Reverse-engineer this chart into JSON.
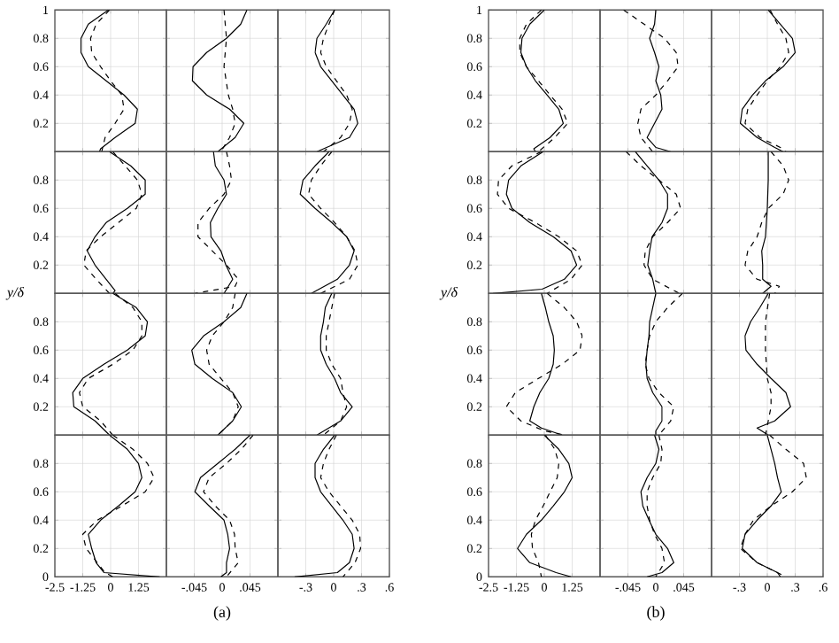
{
  "chart_data": [
    {
      "type": "line",
      "xlim": [
        -2.5,
        2.5
      ],
      "ylim": [
        0,
        1
      ],
      "xticks": [
        -1.25,
        0,
        1.25
      ],
      "yticks": [
        0.2,
        0.4,
        0.6,
        0.8,
        1
      ],
      "grid": true,
      "tick_labels": "y",
      "series": [
        {
          "color": "#000000",
          "line_style": "solid",
          "x": [
            -0.1,
            -1.0,
            -1.33,
            -1.33,
            -1.0,
            -0.2,
            0.6,
            1.2,
            1.1,
            0.2,
            -0.45,
            -0.5
          ],
          "values": [
            1,
            0.9,
            0.8,
            0.7,
            0.6,
            0.5,
            0.4,
            0.3,
            0.2,
            0.1,
            0.02,
            0
          ]
        },
        {
          "color": "#000000",
          "line_style": "dashed",
          "x": [
            -0.05,
            -0.65,
            -0.9,
            -0.85,
            -0.45,
            0,
            0.5,
            0.6,
            0.2,
            -0.25,
            -0.4
          ],
          "values": [
            1,
            0.9,
            0.8,
            0.7,
            0.6,
            0.5,
            0.4,
            0.3,
            0.2,
            0.1,
            0
          ]
        }
      ]
    },
    {
      "type": "line",
      "xlim": [
        -0.09,
        0.09
      ],
      "ylim": [
        0,
        1
      ],
      "xticks": [
        {
          "value": -0.045,
          "label": null
        },
        0,
        {
          "value": 0.045,
          "label": null
        }
      ],
      "yticks": [
        0.2,
        0.4,
        0.6,
        0.8
      ],
      "grid": true,
      "tick_labels": false,
      "series": [
        {
          "color": "#000000",
          "line_style": "solid",
          "x": [
            0.04,
            0.03,
            0.007,
            -0.025,
            -0.047,
            -0.048,
            -0.025,
            0.012,
            0.035,
            0.021,
            -0.007
          ],
          "values": [
            1,
            0.9,
            0.8,
            0.7,
            0.6,
            0.5,
            0.4,
            0.3,
            0.2,
            0.1,
            0
          ]
        },
        {
          "color": "#000000",
          "line_style": "dashed",
          "x": [
            0.003,
            0.007,
            0.003,
            0.01,
            0.017,
            0.021,
            0.012,
            -0.002
          ],
          "values": [
            1,
            0.8,
            0.6,
            0.4,
            0.3,
            0.2,
            0.1,
            0
          ]
        }
      ]
    },
    {
      "type": "line",
      "xlim": [
        -0.6,
        0.6
      ],
      "ylim": [
        0,
        1
      ],
      "xticks": [
        {
          "value": -0.3,
          "label": null
        },
        0,
        {
          "value": 0.3,
          "label": null
        }
      ],
      "yticks": [
        0.2,
        0.4,
        0.6,
        0.8
      ],
      "grid": true,
      "tick_labels": false,
      "series": [
        {
          "color": "#000000",
          "line_style": "solid",
          "x": [
            0.01,
            -0.08,
            -0.18,
            -0.2,
            -0.14,
            -0.02,
            0.1,
            0.22,
            0.26,
            0.17,
            -0.18
          ],
          "values": [
            1,
            0.9,
            0.8,
            0.7,
            0.6,
            0.5,
            0.4,
            0.3,
            0.2,
            0.1,
            0
          ]
        },
        {
          "color": "#000000",
          "line_style": "dashed",
          "x": [
            0.01,
            -0.05,
            -0.11,
            -0.14,
            -0.08,
            0.03,
            0.14,
            0.2,
            0.17,
            0.075,
            -0.11
          ],
          "values": [
            1,
            0.9,
            0.8,
            0.7,
            0.6,
            0.5,
            0.4,
            0.3,
            0.2,
            0.1,
            0
          ]
        }
      ]
    },
    {
      "type": "line",
      "xlim": [
        -2.5,
        2.5
      ],
      "ylim": [
        0,
        1
      ],
      "xticks": [
        -1.25,
        0,
        1.25
      ],
      "yticks": [
        0.2,
        0.4,
        0.6,
        0.8
      ],
      "grid": true,
      "tick_labels": "y",
      "ylabel": "y/δ",
      "series": [
        {
          "color": "#000000",
          "line_style": "solid",
          "x": [
            -0.05,
            0.9,
            1.55,
            1.55,
            0.75,
            -0.2,
            -0.7,
            -1.05,
            -0.7,
            -0.2,
            0.2,
            0.1
          ],
          "values": [
            1,
            0.9,
            0.8,
            0.7,
            0.6,
            0.5,
            0.4,
            0.3,
            0.2,
            0.1,
            0.02,
            0
          ]
        },
        {
          "color": "#000000",
          "line_style": "dashed",
          "x": [
            0.1,
            0.65,
            1.2,
            1.4,
            1.15,
            0.35,
            -0.45,
            -1.1,
            -1.2,
            -0.65,
            -0.05
          ],
          "values": [
            1,
            0.9,
            0.8,
            0.7,
            0.6,
            0.5,
            0.4,
            0.3,
            0.2,
            0.1,
            0
          ]
        }
      ]
    },
    {
      "type": "line",
      "xlim": [
        -0.09,
        0.09
      ],
      "ylim": [
        0,
        1
      ],
      "xticks": [
        {
          "value": -0.045,
          "label": null
        },
        0,
        {
          "value": 0.045,
          "label": null
        }
      ],
      "yticks": [
        0.2,
        0.4,
        0.6,
        0.8
      ],
      "grid": true,
      "tick_labels": false,
      "series": [
        {
          "color": "#000000",
          "line_style": "solid",
          "x": [
            -0.014,
            -0.011,
            0.003,
            0.007,
            -0.007,
            -0.019,
            -0.018,
            -0.002,
            0.006,
            0.017,
            0.003
          ],
          "values": [
            1,
            0.9,
            0.8,
            0.7,
            0.6,
            0.5,
            0.4,
            0.3,
            0.2,
            0.1,
            0
          ]
        },
        {
          "color": "#000000",
          "line_style": "dashed",
          "x": [
            0.007,
            0.012,
            0.015,
            0.003,
            -0.021,
            -0.039,
            -0.039,
            -0.016,
            0.007,
            0.026,
            0.021,
            -0.044
          ],
          "values": [
            1,
            0.9,
            0.8,
            0.7,
            0.6,
            0.5,
            0.4,
            0.3,
            0.2,
            0.1,
            0.05,
            0
          ]
        }
      ]
    },
    {
      "type": "line",
      "xlim": [
        -0.6,
        0.6
      ],
      "ylim": [
        0,
        1
      ],
      "xticks": [
        {
          "value": -0.3,
          "label": null
        },
        0,
        {
          "value": 0.3,
          "label": null
        }
      ],
      "yticks": [
        0.2,
        0.4,
        0.6,
        0.8
      ],
      "grid": true,
      "tick_labels": false,
      "series": [
        {
          "color": "#000000",
          "line_style": "solid",
          "x": [
            -0.05,
            -0.2,
            -0.33,
            -0.36,
            -0.2,
            -0.02,
            0.14,
            0.22,
            0.17,
            0.04,
            -0.24
          ],
          "values": [
            1,
            0.9,
            0.8,
            0.7,
            0.6,
            0.5,
            0.4,
            0.3,
            0.2,
            0.1,
            0
          ]
        },
        {
          "color": "#000000",
          "line_style": "dashed",
          "x": [
            -0.02,
            -0.14,
            -0.24,
            -0.27,
            -0.14,
            0.01,
            0.14,
            0.23,
            0.26,
            0.17,
            -0.14
          ],
          "values": [
            1,
            0.9,
            0.8,
            0.7,
            0.6,
            0.5,
            0.4,
            0.3,
            0.2,
            0.1,
            0
          ]
        }
      ]
    },
    {
      "type": "line",
      "xlim": [
        -2.5,
        2.5
      ],
      "ylim": [
        0,
        1
      ],
      "xticks": [
        -1.25,
        0,
        1.25
      ],
      "yticks": [
        0.2,
        0.4,
        0.6,
        0.8
      ],
      "grid": true,
      "tick_labels": "y",
      "series": [
        {
          "color": "#000000",
          "line_style": "solid",
          "x": [
            0.1,
            1.15,
            1.65,
            1.55,
            0.75,
            -0.3,
            -1.25,
            -1.7,
            -1.65,
            -0.7,
            -0.05
          ],
          "values": [
            1,
            0.9,
            0.8,
            0.7,
            0.6,
            0.5,
            0.4,
            0.3,
            0.2,
            0.1,
            0
          ]
        },
        {
          "color": "#000000",
          "line_style": "dashed",
          "x": [
            0.2,
            1.0,
            1.4,
            1.4,
            1.0,
            0.1,
            -1.0,
            -1.4,
            -1.25,
            -0.45,
            0.1
          ],
          "values": [
            1,
            0.9,
            0.8,
            0.7,
            0.6,
            0.5,
            0.4,
            0.3,
            0.2,
            0.1,
            0
          ]
        }
      ]
    },
    {
      "type": "line",
      "xlim": [
        -0.09,
        0.09
      ],
      "ylim": [
        0,
        1
      ],
      "xticks": [
        {
          "value": -0.045,
          "label": null
        },
        0,
        {
          "value": 0.045,
          "label": null
        }
      ],
      "yticks": [
        0.2,
        0.4,
        0.6,
        0.8
      ],
      "grid": true,
      "tick_labels": false,
      "series": [
        {
          "color": "#000000",
          "line_style": "solid",
          "x": [
            0.04,
            0.03,
            0.003,
            -0.03,
            -0.049,
            -0.044,
            -0.016,
            0.017,
            0.031,
            0.017,
            -0.007
          ],
          "values": [
            1,
            0.9,
            0.8,
            0.7,
            0.6,
            0.5,
            0.4,
            0.3,
            0.2,
            0.1,
            0
          ]
        },
        {
          "color": "#000000",
          "line_style": "dashed",
          "x": [
            0.021,
            0.017,
            0.003,
            -0.016,
            -0.025,
            -0.021,
            -0.002,
            0.017,
            0.026,
            0.017,
            -0.007
          ],
          "values": [
            1,
            0.9,
            0.8,
            0.7,
            0.6,
            0.5,
            0.4,
            0.3,
            0.2,
            0.1,
            0
          ]
        }
      ]
    },
    {
      "type": "line",
      "xlim": [
        -0.6,
        0.6
      ],
      "ylim": [
        0,
        1
      ],
      "xticks": [
        {
          "value": -0.3,
          "label": null
        },
        0,
        {
          "value": 0.3,
          "label": null
        }
      ],
      "yticks": [
        0.2,
        0.4,
        0.6,
        0.8
      ],
      "grid": true,
      "tick_labels": false,
      "series": [
        {
          "color": "#000000",
          "line_style": "solid",
          "x": [
            -0.02,
            -0.09,
            -0.11,
            -0.14,
            -0.14,
            -0.08,
            0.01,
            0.075,
            0.2,
            0.075,
            -0.18
          ],
          "values": [
            1,
            0.9,
            0.8,
            0.7,
            0.6,
            0.5,
            0.4,
            0.3,
            0.2,
            0.1,
            0
          ]
        },
        {
          "color": "#000000",
          "line_style": "dashed",
          "x": [
            0.01,
            -0.02,
            -0.05,
            -0.08,
            -0.08,
            -0.02,
            0.075,
            0.1,
            0.14,
            0.075,
            -0.11
          ],
          "values": [
            1,
            0.9,
            0.8,
            0.7,
            0.6,
            0.5,
            0.4,
            0.3,
            0.2,
            0.1,
            0
          ]
        }
      ]
    },
    {
      "type": "line",
      "xlim": [
        -2.5,
        2.5
      ],
      "ylim": [
        0,
        1
      ],
      "xticks": [
        -2.5,
        -1.25,
        0,
        1.25
      ],
      "yticks": [
        0,
        0.2,
        0.4,
        0.6,
        0.8
      ],
      "grid": true,
      "series": [
        {
          "color": "#000000",
          "line_style": "solid",
          "x": [
            -0.05,
            0.75,
            1.25,
            1.4,
            1.1,
            0.35,
            -0.45,
            -1.0,
            -0.85,
            -0.65,
            -0.3,
            2.2
          ],
          "values": [
            1,
            0.9,
            0.8,
            0.7,
            0.6,
            0.5,
            0.4,
            0.3,
            0.2,
            0.1,
            0.03,
            0
          ]
        },
        {
          "color": "#000000",
          "line_style": "dashed",
          "x": [
            0.1,
            1.0,
            1.65,
            1.95,
            1.55,
            0.5,
            -0.6,
            -1.25,
            -1.1,
            -0.6,
            -0.25,
            0.1
          ],
          "values": [
            1,
            0.9,
            0.8,
            0.7,
            0.6,
            0.5,
            0.4,
            0.3,
            0.2,
            0.1,
            0.03,
            0
          ]
        }
      ]
    },
    {
      "type": "line",
      "xlim": [
        -0.09,
        0.09
      ],
      "ylim": [
        0,
        1
      ],
      "xticks": [
        {
          "value": -0.045,
          "label": "-.045"
        },
        0,
        {
          "value": 0.045,
          "label": ".045"
        }
      ],
      "yticks": [
        0,
        0.2,
        0.4,
        0.6,
        0.8
      ],
      "grid": true,
      "tick_labels": "x",
      "annotations": [
        "(a)"
      ],
      "series": [
        {
          "color": "#000000",
          "line_style": "solid",
          "x": [
            0.045,
            0.021,
            -0.007,
            -0.035,
            -0.044,
            -0.021,
            0.003,
            0.009,
            0.012,
            0.007,
            0.007,
            -0.002
          ],
          "values": [
            1,
            0.9,
            0.8,
            0.7,
            0.6,
            0.5,
            0.4,
            0.3,
            0.2,
            0.1,
            0.03,
            0
          ]
        },
        {
          "color": "#000000",
          "line_style": "dashed",
          "x": [
            0.05,
            0.031,
            0.007,
            -0.021,
            -0.03,
            -0.011,
            0.012,
            0.02,
            0.021,
            0.026,
            0.007
          ],
          "values": [
            1,
            0.9,
            0.8,
            0.7,
            0.6,
            0.5,
            0.4,
            0.3,
            0.2,
            0.1,
            0
          ]
        }
      ]
    },
    {
      "type": "line",
      "xlim": [
        -0.6,
        0.6
      ],
      "ylim": [
        0,
        1
      ],
      "xticks": [
        {
          "value": -0.3,
          "label": "-.3"
        },
        0,
        {
          "value": 0.3,
          "label": ".3"
        },
        {
          "value": 0.6,
          "label": ".6"
        }
      ],
      "yticks": [
        0,
        0.2,
        0.4,
        0.6,
        0.8
      ],
      "grid": true,
      "tick_labels": "x",
      "series": [
        {
          "color": "#000000",
          "line_style": "solid",
          "x": [
            0.01,
            -0.11,
            -0.2,
            -0.2,
            -0.14,
            -0.02,
            0.1,
            0.2,
            0.22,
            0.17,
            0.04,
            -0.42
          ],
          "values": [
            1,
            0.9,
            0.8,
            0.7,
            0.6,
            0.5,
            0.4,
            0.3,
            0.2,
            0.1,
            0.03,
            0
          ]
        },
        {
          "color": "#000000",
          "line_style": "dashed",
          "x": [
            0.03,
            -0.05,
            -0.11,
            -0.14,
            -0.05,
            0.075,
            0.2,
            0.28,
            0.29,
            0.23,
            0.1
          ],
          "values": [
            1,
            0.9,
            0.8,
            0.7,
            0.6,
            0.5,
            0.4,
            0.3,
            0.2,
            0.1,
            0
          ]
        }
      ]
    },
    {
      "type": "line",
      "xlim": [
        -2.5,
        2.5
      ],
      "ylim": [
        0,
        1
      ],
      "xticks": [
        -1.25,
        0,
        1.25
      ],
      "yticks": [
        0.2,
        0.4,
        0.6,
        0.8,
        1
      ],
      "grid": true,
      "tick_labels": "y",
      "series": [
        {
          "color": "#000000",
          "line_style": "solid",
          "x": [
            0,
            -0.65,
            -1.0,
            -1.05,
            -0.8,
            -0.4,
            0.13,
            0.65,
            0.85,
            0.26,
            -0.47,
            -0.4
          ],
          "values": [
            1,
            0.9,
            0.8,
            0.7,
            0.6,
            0.5,
            0.4,
            0.3,
            0.2,
            0.1,
            0.02,
            0
          ]
        },
        {
          "color": "#000000",
          "line_style": "dashed",
          "x": [
            -0.13,
            -0.8,
            -1.1,
            -1.1,
            -0.8,
            -0.26,
            0.26,
            0.8,
            1.05,
            0.47,
            -0.26
          ],
          "values": [
            1,
            0.9,
            0.8,
            0.7,
            0.6,
            0.5,
            0.4,
            0.3,
            0.2,
            0.1,
            0
          ]
        }
      ]
    },
    {
      "type": "line",
      "xlim": [
        -0.09,
        0.09
      ],
      "ylim": [
        0,
        1
      ],
      "xticks": [
        {
          "value": -0.045,
          "label": null
        },
        0,
        {
          "value": 0.045,
          "label": null
        }
      ],
      "yticks": [
        0.2,
        0.4,
        0.6,
        0.8
      ],
      "grid": true,
      "tick_labels": false,
      "series": [
        {
          "color": "#000000",
          "line_style": "solid",
          "x": [
            0,
            -0.002,
            -0.01,
            -0.002,
            0.005,
            0,
            0.008,
            0.01,
            -0.002,
            -0.014,
            0,
            0.024
          ],
          "values": [
            1,
            0.9,
            0.8,
            0.7,
            0.6,
            0.5,
            0.4,
            0.3,
            0.2,
            0.1,
            0.03,
            0
          ]
        },
        {
          "color": "#000000",
          "line_style": "dashed",
          "x": [
            -0.052,
            -0.019,
            0.014,
            0.033,
            0.036,
            0.019,
            0,
            -0.024,
            -0.029,
            -0.024,
            -0.005
          ],
          "values": [
            1,
            0.9,
            0.8,
            0.7,
            0.6,
            0.5,
            0.4,
            0.3,
            0.2,
            0.1,
            0
          ]
        }
      ]
    },
    {
      "type": "line",
      "xlim": [
        -0.6,
        0.6
      ],
      "ylim": [
        0,
        1
      ],
      "xticks": [
        {
          "value": -0.3,
          "label": null
        },
        0,
        {
          "value": 0.3,
          "label": null
        }
      ],
      "yticks": [
        0.2,
        0.4,
        0.6,
        0.8
      ],
      "grid": true,
      "tick_labels": false,
      "series": [
        {
          "color": "#000000",
          "line_style": "solid",
          "x": [
            0.01,
            0.14,
            0.27,
            0.3,
            0.17,
            -0.02,
            -0.16,
            -0.27,
            -0.29,
            -0.11,
            0.08,
            0.17
          ],
          "values": [
            1,
            0.9,
            0.8,
            0.7,
            0.6,
            0.5,
            0.4,
            0.3,
            0.2,
            0.1,
            0.03,
            0
          ]
        },
        {
          "color": "#000000",
          "line_style": "dashed",
          "x": [
            0.03,
            0.11,
            0.2,
            0.23,
            0.14,
            0,
            -0.11,
            -0.21,
            -0.24,
            -0.08,
            0.14,
            0.2
          ],
          "values": [
            1,
            0.9,
            0.8,
            0.7,
            0.6,
            0.5,
            0.4,
            0.3,
            0.2,
            0.1,
            0.03,
            0
          ]
        }
      ]
    },
    {
      "type": "line",
      "xlim": [
        -2.5,
        2.5
      ],
      "ylim": [
        0,
        1
      ],
      "xticks": [
        -1.25,
        0,
        1.25
      ],
      "yticks": [
        0.2,
        0.4,
        0.6,
        0.8
      ],
      "grid": true,
      "tick_labels": "y",
      "ylabel": "y/δ",
      "series": [
        {
          "color": "#000000",
          "line_style": "solid",
          "x": [
            -0.05,
            -1.05,
            -1.6,
            -1.7,
            -1.45,
            -0.65,
            0.4,
            1.2,
            1.45,
            0.9,
            -0.1,
            -2.3
          ],
          "values": [
            1,
            0.9,
            0.8,
            0.7,
            0.6,
            0.5,
            0.4,
            0.3,
            0.2,
            0.1,
            0.03,
            0
          ]
        },
        {
          "color": "#000000",
          "line_style": "dashed",
          "x": [
            -0.13,
            -1.45,
            -2.05,
            -2.1,
            -1.6,
            -0.4,
            0.65,
            1.45,
            1.7,
            1.2,
            0.13
          ],
          "values": [
            1,
            0.9,
            0.8,
            0.7,
            0.6,
            0.5,
            0.4,
            0.3,
            0.2,
            0.1,
            0
          ]
        }
      ]
    },
    {
      "type": "line",
      "xlim": [
        -0.09,
        0.09
      ],
      "ylim": [
        0,
        1
      ],
      "xticks": [
        {
          "value": -0.045,
          "label": null
        },
        0,
        {
          "value": 0.045,
          "label": null
        }
      ],
      "yticks": [
        0.2,
        0.4,
        0.6,
        0.8
      ],
      "grid": true,
      "tick_labels": false,
      "series": [
        {
          "color": "#000000",
          "line_style": "solid",
          "x": [
            -0.033,
            -0.014,
            0.005,
            0.019,
            0.019,
            0.01,
            -0.006,
            -0.01,
            -0.013,
            -0.005,
            0
          ],
          "values": [
            1,
            0.9,
            0.8,
            0.7,
            0.6,
            0.5,
            0.4,
            0.3,
            0.2,
            0.1,
            0
          ]
        },
        {
          "color": "#000000",
          "line_style": "dashed",
          "x": [
            -0.048,
            -0.024,
            0.005,
            0.033,
            0.04,
            0.019,
            -0.005,
            -0.017,
            -0.019,
            -0.005,
            0.038
          ],
          "values": [
            1,
            0.9,
            0.8,
            0.7,
            0.6,
            0.5,
            0.4,
            0.3,
            0.2,
            0.1,
            0
          ]
        }
      ]
    },
    {
      "type": "line",
      "xlim": [
        -0.6,
        0.6
      ],
      "ylim": [
        0,
        1
      ],
      "xticks": [
        {
          "value": -0.3,
          "label": null
        },
        0,
        {
          "value": 0.3,
          "label": null
        }
      ],
      "yticks": [
        0.2,
        0.4,
        0.6,
        0.8
      ],
      "grid": true,
      "tick_labels": false,
      "series": [
        {
          "color": "#000000",
          "line_style": "solid",
          "x": [
            0.01,
            0.01,
            0,
            -0.02,
            -0.06,
            -0.05,
            -0.05,
            0.04,
            -0.05
          ],
          "values": [
            1,
            0.8,
            0.6,
            0.4,
            0.3,
            0.2,
            0.1,
            0.05,
            0
          ]
        },
        {
          "color": "#000000",
          "line_style": "dashed",
          "x": [
            0.04,
            0.17,
            0.23,
            0.17,
            0.01,
            -0.06,
            -0.11,
            -0.21,
            -0.24,
            -0.11,
            0.13,
            0.08
          ],
          "values": [
            1,
            0.9,
            0.8,
            0.7,
            0.6,
            0.5,
            0.4,
            0.3,
            0.2,
            0.1,
            0.05,
            0
          ]
        }
      ]
    },
    {
      "type": "line",
      "xlim": [
        -2.5,
        2.5
      ],
      "ylim": [
        0,
        1
      ],
      "xticks": [
        -1.25,
        0,
        1.25
      ],
      "yticks": [
        0.2,
        0.4,
        0.6,
        0.8
      ],
      "grid": true,
      "tick_labels": "y",
      "series": [
        {
          "color": "#000000",
          "line_style": "solid",
          "x": [
            -0.13,
            0.05,
            0.2,
            0.4,
            0.45,
            0.4,
            0.2,
            -0.2,
            -0.47,
            -0.65,
            -0.13,
            0.8
          ],
          "values": [
            1,
            0.9,
            0.8,
            0.7,
            0.6,
            0.5,
            0.4,
            0.3,
            0.2,
            0.1,
            0.05,
            0
          ]
        },
        {
          "color": "#000000",
          "line_style": "dashed",
          "x": [
            0.13,
            0.9,
            1.45,
            1.7,
            1.6,
            0.8,
            -0.26,
            -1.3,
            -1.7,
            -1.05,
            0,
            0.9
          ],
          "values": [
            1,
            0.9,
            0.8,
            0.7,
            0.6,
            0.5,
            0.4,
            0.3,
            0.2,
            0.1,
            0.03,
            0
          ]
        }
      ]
    },
    {
      "type": "line",
      "xlim": [
        -0.09,
        0.09
      ],
      "ylim": [
        0,
        1
      ],
      "xticks": [
        {
          "value": -0.045,
          "label": null
        },
        0,
        {
          "value": 0.045,
          "label": null
        }
      ],
      "yticks": [
        0.2,
        0.4,
        0.6,
        0.8
      ],
      "grid": true,
      "tick_labels": false,
      "series": [
        {
          "color": "#000000",
          "line_style": "solid",
          "x": [
            0,
            -0.005,
            -0.01,
            -0.011,
            -0.014,
            -0.016,
            -0.014,
            -0.005,
            0.01,
            0.01,
            0,
            0
          ],
          "values": [
            1,
            0.9,
            0.8,
            0.7,
            0.6,
            0.5,
            0.4,
            0.3,
            0.2,
            0.1,
            0.03,
            0
          ]
        },
        {
          "color": "#000000",
          "line_style": "dashed",
          "x": [
            0.043,
            0.019,
            0,
            -0.01,
            -0.014,
            -0.017,
            -0.011,
            0.005,
            0.029,
            0.024,
            0.005
          ],
          "values": [
            1,
            0.9,
            0.8,
            0.7,
            0.6,
            0.5,
            0.4,
            0.3,
            0.2,
            0.1,
            0
          ]
        }
      ]
    },
    {
      "type": "line",
      "xlim": [
        -0.6,
        0.6
      ],
      "ylim": [
        0,
        1
      ],
      "xticks": [
        {
          "value": -0.3,
          "label": null
        },
        0,
        {
          "value": 0.3,
          "label": null
        }
      ],
      "yticks": [
        0.2,
        0.4,
        0.6,
        0.8
      ],
      "grid": true,
      "tick_labels": false,
      "series": [
        {
          "color": "#000000",
          "line_style": "solid",
          "x": [
            0.01,
            -0.08,
            -0.18,
            -0.24,
            -0.23,
            -0.11,
            0.04,
            0.2,
            0.25,
            0.08,
            -0.11,
            0.01
          ],
          "values": [
            1,
            0.9,
            0.8,
            0.7,
            0.6,
            0.5,
            0.4,
            0.3,
            0.2,
            0.1,
            0.05,
            0
          ]
        },
        {
          "color": "#000000",
          "line_style": "dashed",
          "x": [
            0.025,
            -0.02,
            -0.02,
            0,
            0.04,
            0.04,
            0.01,
            -0.02
          ],
          "values": [
            1,
            0.8,
            0.6,
            0.4,
            0.3,
            0.2,
            0.1,
            0
          ]
        }
      ]
    },
    {
      "type": "line",
      "xlim": [
        -2.5,
        2.5
      ],
      "ylim": [
        0,
        1
      ],
      "xticks": [
        -2.5,
        -1.25,
        0,
        1.25
      ],
      "yticks": [
        0,
        0.2,
        0.4,
        0.6,
        0.8
      ],
      "grid": true,
      "series": [
        {
          "color": "#000000",
          "line_style": "solid",
          "x": [
            0,
            0.65,
            1.1,
            1.25,
            0.9,
            0.4,
            -0.13,
            -0.8,
            -1.2,
            -0.65,
            0.53,
            1.2
          ],
          "values": [
            1,
            0.9,
            0.8,
            0.7,
            0.6,
            0.5,
            0.4,
            0.3,
            0.2,
            0.1,
            0.03,
            0
          ]
        },
        {
          "color": "#000000",
          "line_style": "dashed",
          "x": [
            0.05,
            0.47,
            0.65,
            0.58,
            0.26,
            -0.05,
            -0.4,
            -0.58,
            -0.53,
            -0.26,
            -0.13
          ],
          "values": [
            1,
            0.9,
            0.8,
            0.7,
            0.6,
            0.5,
            0.4,
            0.3,
            0.2,
            0.1,
            0
          ]
        }
      ]
    },
    {
      "type": "line",
      "xlim": [
        -0.09,
        0.09
      ],
      "ylim": [
        0,
        1
      ],
      "xticks": [
        {
          "value": -0.045,
          "label": "-.045"
        },
        0,
        {
          "value": 0.045,
          "label": ".045"
        }
      ],
      "yticks": [
        0,
        0.2,
        0.4,
        0.6,
        0.8
      ],
      "grid": true,
      "tick_labels": "x",
      "annotations": [
        "(b)"
      ],
      "series": [
        {
          "color": "#000000",
          "line_style": "solid",
          "x": [
            -0.002,
            0.005,
            0,
            -0.014,
            -0.024,
            -0.021,
            -0.011,
            0,
            0.019,
            0.029,
            0.01,
            -0.014
          ],
          "values": [
            1,
            0.9,
            0.8,
            0.7,
            0.6,
            0.5,
            0.4,
            0.3,
            0.2,
            0.1,
            0.03,
            0
          ]
        },
        {
          "color": "#000000",
          "line_style": "dashed",
          "x": [
            0.005,
            0.01,
            0.008,
            -0.005,
            -0.014,
            -0.014,
            -0.01,
            -0.002,
            0.01,
            0.014,
            0
          ],
          "values": [
            1,
            0.9,
            0.8,
            0.7,
            0.6,
            0.5,
            0.4,
            0.3,
            0.2,
            0.1,
            0
          ]
        }
      ]
    },
    {
      "type": "line",
      "xlim": [
        -0.6,
        0.6
      ],
      "ylim": [
        0,
        1
      ],
      "xticks": [
        {
          "value": -0.3,
          "label": "-.3"
        },
        0,
        {
          "value": 0.3,
          "label": ".3"
        },
        {
          "value": 0.6,
          "label": ".6"
        }
      ],
      "yticks": [
        0,
        0.2,
        0.4,
        0.6,
        0.8
      ],
      "grid": true,
      "tick_labels": "x",
      "series": [
        {
          "color": "#000000",
          "line_style": "solid",
          "x": [
            0,
            0.04,
            0.08,
            0.11,
            0.15,
            0.04,
            -0.11,
            -0.24,
            -0.27,
            -0.11,
            0.11,
            0.14
          ],
          "values": [
            1,
            0.9,
            0.8,
            0.7,
            0.6,
            0.5,
            0.4,
            0.3,
            0.2,
            0.1,
            0.03,
            0
          ]
        },
        {
          "color": "#000000",
          "line_style": "dashed",
          "x": [
            0.025,
            0.2,
            0.39,
            0.42,
            0.27,
            0.04,
            -0.15,
            -0.24,
            -0.29,
            -0.11,
            0.2
          ],
          "values": [
            1,
            0.9,
            0.8,
            0.7,
            0.6,
            0.5,
            0.4,
            0.3,
            0.2,
            0.1,
            0
          ]
        }
      ]
    }
  ]
}
